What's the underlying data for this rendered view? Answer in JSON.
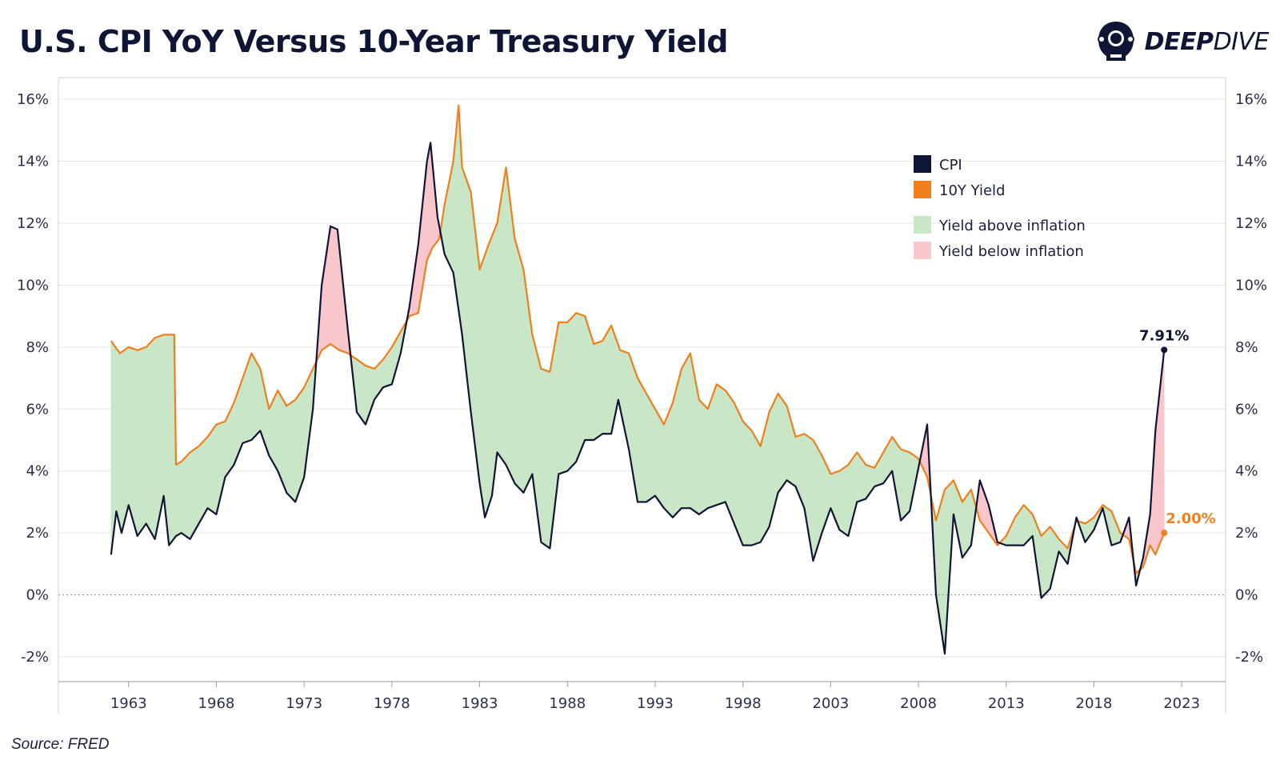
{
  "title": "U.S. CPI YoY Versus 10-Year Treasury Yield",
  "brand": {
    "bold": "DEEP",
    "light": "DIVE",
    "icon": "diving-helmet-icon"
  },
  "source": "Source: FRED",
  "colors": {
    "cpi": "#0f1535",
    "yield": "#f07f1c",
    "above": "#c9e6c6",
    "below": "#f9c6cc",
    "grid": "#e6e6e6"
  },
  "chart_data": {
    "type": "line",
    "x_ticks": [
      "1963",
      "1968",
      "1973",
      "1978",
      "1983",
      "1988",
      "1993",
      "1998",
      "2003",
      "2008",
      "2013",
      "2018",
      "2023"
    ],
    "y_ticks_left": [
      "16%",
      "14%",
      "12%",
      "10%",
      "8%",
      "6%",
      "4%",
      "2%",
      "0%",
      "-2%"
    ],
    "y_ticks_right": [
      "16%",
      "14%",
      "12%",
      "10%",
      "8%",
      "6%",
      "4%",
      "2%",
      "0%",
      "-2%"
    ],
    "ylim": [
      -2.8,
      16.7
    ],
    "xlim": [
      1959.0,
      2025.5
    ],
    "grid": true,
    "zero_line": "dotted",
    "legend": {
      "position": "top-right",
      "items": [
        {
          "label": "CPI",
          "color": "#0f1535"
        },
        {
          "label": "10Y Yield",
          "color": "#f07f1c"
        },
        {
          "label": "Yield above inflation",
          "color": "#c9e6c6"
        },
        {
          "label": "Yield below inflation",
          "color": "#f9c6cc"
        }
      ]
    },
    "end_labels": {
      "cpi": "7.91%",
      "yield": "2.00%"
    },
    "series": [
      {
        "name": "CPI",
        "x": [
          1962.0,
          1962.3,
          1962.6,
          1963.0,
          1963.5,
          1964.0,
          1964.5,
          1965.0,
          1965.3,
          1965.7,
          1966.0,
          1966.5,
          1967.0,
          1967.5,
          1968.0,
          1968.5,
          1969.0,
          1969.5,
          1970.0,
          1970.5,
          1971.0,
          1971.5,
          1972.0,
          1972.5,
          1973.0,
          1973.5,
          1974.0,
          1974.5,
          1974.9,
          1975.5,
          1976.0,
          1976.5,
          1977.0,
          1977.5,
          1978.0,
          1978.5,
          1979.0,
          1979.5,
          1980.0,
          1980.2,
          1980.6,
          1981.0,
          1981.5,
          1982.0,
          1982.5,
          1983.0,
          1983.3,
          1983.7,
          1984.0,
          1984.5,
          1985.0,
          1985.5,
          1986.0,
          1986.5,
          1987.0,
          1987.5,
          1988.0,
          1988.5,
          1989.0,
          1989.5,
          1990.0,
          1990.5,
          1990.9,
          1991.5,
          1992.0,
          1992.5,
          1993.0,
          1993.5,
          1994.0,
          1994.5,
          1995.0,
          1995.5,
          1996.0,
          1996.5,
          1997.0,
          1997.5,
          1998.0,
          1998.5,
          1999.0,
          1999.5,
          2000.0,
          2000.5,
          2001.0,
          2001.5,
          2002.0,
          2002.5,
          2003.0,
          2003.5,
          2004.0,
          2004.5,
          2005.0,
          2005.5,
          2006.0,
          2006.5,
          2007.0,
          2007.5,
          2008.0,
          2008.5,
          2009.0,
          2009.5,
          2010.0,
          2010.5,
          2011.0,
          2011.5,
          2012.0,
          2012.5,
          2013.0,
          2013.5,
          2014.0,
          2014.5,
          2015.0,
          2015.5,
          2016.0,
          2016.5,
          2017.0,
          2017.5,
          2018.0,
          2018.5,
          2019.0,
          2019.5,
          2020.0,
          2020.4,
          2020.8,
          2021.2,
          2021.5,
          2022.0
        ],
        "y": [
          1.3,
          2.7,
          2.0,
          2.9,
          1.9,
          2.3,
          1.8,
          3.2,
          1.6,
          1.9,
          2.0,
          1.8,
          2.3,
          2.8,
          2.6,
          3.8,
          4.2,
          4.9,
          5.0,
          5.3,
          4.5,
          4.0,
          3.3,
          3.0,
          3.8,
          6.0,
          10.0,
          11.9,
          11.8,
          8.5,
          5.9,
          5.5,
          6.3,
          6.7,
          6.8,
          7.8,
          9.3,
          11.3,
          14.0,
          14.6,
          12.2,
          11.0,
          10.4,
          8.4,
          5.9,
          3.6,
          2.5,
          3.2,
          4.6,
          4.2,
          3.6,
          3.3,
          3.9,
          1.7,
          1.5,
          3.9,
          4.0,
          4.3,
          5.0,
          5.0,
          5.2,
          5.2,
          6.3,
          4.7,
          3.0,
          3.0,
          3.2,
          2.8,
          2.5,
          2.8,
          2.8,
          2.6,
          2.8,
          2.9,
          3.0,
          2.3,
          1.6,
          1.6,
          1.7,
          2.2,
          3.3,
          3.7,
          3.5,
          2.8,
          1.1,
          2.0,
          2.8,
          2.1,
          1.9,
          3.0,
          3.1,
          3.5,
          3.6,
          4.0,
          2.4,
          2.7,
          4.1,
          5.5,
          0.0,
          -1.9,
          2.6,
          1.2,
          1.6,
          3.7,
          2.9,
          1.7,
          1.6,
          1.6,
          1.6,
          1.9,
          -0.1,
          0.2,
          1.4,
          1.0,
          2.5,
          1.7,
          2.1,
          2.8,
          1.6,
          1.7,
          2.5,
          0.3,
          1.2,
          2.6,
          5.3,
          7.91
        ]
      },
      {
        "name": "10Y Yield",
        "x": [
          1962.0,
          1962.5,
          1963.0,
          1963.5,
          1964.0,
          1964.5,
          1965.0,
          1965.3,
          1965.6,
          1965.7,
          1966.0,
          1966.5,
          1967.0,
          1967.5,
          1968.0,
          1968.5,
          1969.0,
          1969.5,
          1970.0,
          1970.5,
          1971.0,
          1971.5,
          1972.0,
          1972.5,
          1973.0,
          1973.5,
          1974.0,
          1974.5,
          1975.0,
          1975.5,
          1976.0,
          1976.5,
          1977.0,
          1977.5,
          1978.0,
          1978.5,
          1979.0,
          1979.5,
          1980.0,
          1980.3,
          1980.7,
          1981.0,
          1981.5,
          1981.8,
          1982.0,
          1982.5,
          1983.0,
          1983.5,
          1984.0,
          1984.5,
          1985.0,
          1985.5,
          1986.0,
          1986.5,
          1987.0,
          1987.5,
          1988.0,
          1988.5,
          1989.0,
          1989.5,
          1990.0,
          1990.5,
          1991.0,
          1991.5,
          1992.0,
          1992.5,
          1993.0,
          1993.5,
          1994.0,
          1994.5,
          1995.0,
          1995.5,
          1996.0,
          1996.5,
          1997.0,
          1997.5,
          1998.0,
          1998.5,
          1999.0,
          1999.5,
          2000.0,
          2000.5,
          2001.0,
          2001.5,
          2002.0,
          2002.5,
          2003.0,
          2003.5,
          2004.0,
          2004.5,
          2005.0,
          2005.5,
          2006.0,
          2006.5,
          2007.0,
          2007.5,
          2008.0,
          2008.5,
          2009.0,
          2009.5,
          2010.0,
          2010.5,
          2011.0,
          2011.5,
          2012.0,
          2012.5,
          2013.0,
          2013.5,
          2014.0,
          2014.5,
          2015.0,
          2015.5,
          2016.0,
          2016.5,
          2017.0,
          2017.5,
          2018.0,
          2018.5,
          2019.0,
          2019.5,
          2020.0,
          2020.4,
          2020.8,
          2021.2,
          2021.5,
          2022.0
        ],
        "y": [
          8.2,
          7.8,
          8.0,
          7.9,
          8.0,
          8.3,
          8.4,
          8.4,
          8.4,
          4.2,
          4.3,
          4.6,
          4.8,
          5.1,
          5.5,
          5.6,
          6.2,
          7.0,
          7.8,
          7.3,
          6.0,
          6.6,
          6.1,
          6.3,
          6.7,
          7.3,
          7.9,
          8.1,
          7.9,
          7.8,
          7.6,
          7.4,
          7.3,
          7.6,
          8.0,
          8.5,
          9.0,
          9.1,
          10.8,
          11.2,
          11.5,
          12.6,
          14.0,
          15.8,
          13.8,
          13.0,
          10.5,
          11.3,
          12.0,
          13.8,
          11.5,
          10.5,
          8.4,
          7.3,
          7.2,
          8.8,
          8.8,
          9.1,
          9.0,
          8.1,
          8.2,
          8.7,
          7.9,
          7.8,
          7.0,
          6.5,
          6.0,
          5.5,
          6.2,
          7.3,
          7.8,
          6.3,
          6.0,
          6.8,
          6.6,
          6.2,
          5.6,
          5.3,
          4.8,
          5.9,
          6.5,
          6.1,
          5.1,
          5.2,
          5.0,
          4.5,
          3.9,
          4.0,
          4.2,
          4.6,
          4.2,
          4.1,
          4.6,
          5.1,
          4.7,
          4.6,
          4.4,
          3.8,
          2.4,
          3.4,
          3.7,
          3.0,
          3.4,
          2.4,
          2.0,
          1.6,
          1.9,
          2.5,
          2.9,
          2.6,
          1.9,
          2.2,
          1.8,
          1.5,
          2.4,
          2.3,
          2.5,
          2.9,
          2.7,
          2.0,
          1.8,
          0.7,
          0.9,
          1.6,
          1.3,
          2.0
        ]
      }
    ]
  }
}
